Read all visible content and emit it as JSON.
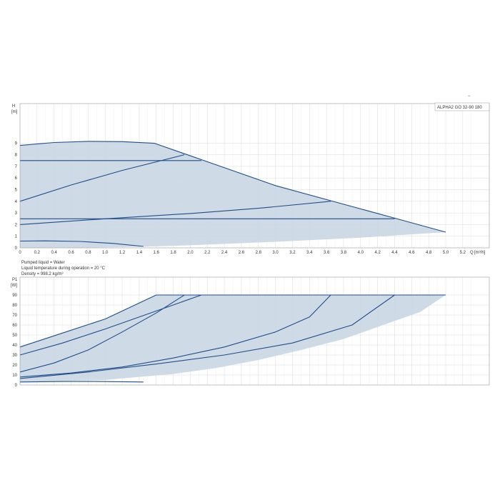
{
  "chart_data": [
    {
      "type": "line",
      "ylabel": "H",
      "yunit": "[m]",
      "xlabel": "Q",
      "xunit": "[m³/h]",
      "xlim": [
        0,
        5.3
      ],
      "ylim": [
        0,
        10
      ],
      "x_ticks": [
        "0",
        "0.2",
        "0.4",
        "0.6",
        "0.8",
        "1.0",
        "1.2",
        "1.4",
        "1.6",
        "1.8",
        "2.0",
        "2.2",
        "2.4",
        "2.6",
        "2.8",
        "3.0",
        "3.2",
        "3.4",
        "3.6",
        "3.8",
        "4.0",
        "4.2",
        "4.4",
        "4.6",
        "4.8",
        "5.0",
        "5.2"
      ],
      "x_tick_values": [
        0,
        0.2,
        0.4,
        0.6,
        0.8,
        1.0,
        1.2,
        1.4,
        1.6,
        1.8,
        2.0,
        2.2,
        2.4,
        2.6,
        2.8,
        3.0,
        3.2,
        3.4,
        3.6,
        3.8,
        4.0,
        4.2,
        4.4,
        4.6,
        4.8,
        5.0,
        5.2
      ],
      "y_ticks": [
        "0",
        "1",
        "2",
        "3",
        "4",
        "5",
        "6",
        "7",
        "8",
        "9"
      ],
      "y_tick_values": [
        0,
        1,
        2,
        3,
        4,
        5,
        6,
        7,
        8,
        9
      ],
      "grid": true,
      "legend": "top-right",
      "legend_text": "ALPHA2 GO 32-90 180",
      "area": {
        "upper": [
          [
            0,
            8.8
          ],
          [
            0.4,
            9.05
          ],
          [
            0.8,
            9.15
          ],
          [
            1.2,
            9.12
          ],
          [
            1.58,
            8.98
          ],
          [
            2.2,
            7.4
          ],
          [
            3.0,
            5.35
          ],
          [
            3.7,
            3.95
          ],
          [
            4.4,
            2.55
          ],
          [
            5.0,
            1.35
          ]
        ],
        "lower": [
          [
            5.0,
            1.35
          ],
          [
            4.0,
            0.88
          ],
          [
            3.0,
            0.52
          ],
          [
            2.0,
            0.22
          ],
          [
            1.45,
            0.1
          ],
          [
            0.8,
            0.02
          ],
          [
            0,
            0
          ]
        ]
      },
      "series": [
        {
          "values": [
            [
              0,
              8.8
            ],
            [
              0.4,
              9.05
            ],
            [
              0.8,
              9.15
            ],
            [
              1.2,
              9.12
            ],
            [
              1.58,
              8.98
            ],
            [
              2.2,
              7.4
            ],
            [
              3.0,
              5.35
            ],
            [
              3.7,
              3.95
            ],
            [
              4.4,
              2.55
            ],
            [
              5.0,
              1.35
            ]
          ]
        },
        {
          "values": [
            [
              0,
              7.5
            ],
            [
              2.13,
              7.5
            ]
          ]
        },
        {
          "values": [
            [
              0,
              4.0
            ],
            [
              0.6,
              5.4
            ],
            [
              1.2,
              6.65
            ],
            [
              1.93,
              8.0
            ]
          ]
        },
        {
          "values": [
            [
              0,
              2.0
            ],
            [
              1.0,
              2.5
            ],
            [
              2.0,
              2.95
            ],
            [
              2.8,
              3.4
            ],
            [
              3.65,
              4.0
            ]
          ]
        },
        {
          "values": [
            [
              0,
              2.5
            ],
            [
              4.4,
              2.5
            ]
          ]
        },
        {
          "values": [
            [
              0,
              0.58
            ],
            [
              0.3,
              0.6
            ],
            [
              0.7,
              0.55
            ],
            [
              1.1,
              0.38
            ],
            [
              1.45,
              0.12
            ]
          ]
        }
      ]
    },
    {
      "type": "line",
      "ylabel": "P1",
      "yunit": "[W]",
      "xlim": [
        0,
        5.3
      ],
      "ylim": [
        0,
        100
      ],
      "x_tick_values": [
        0,
        0.2,
        0.4,
        0.6,
        0.8,
        1.0,
        1.2,
        1.4,
        1.6,
        1.8,
        2.0,
        2.2,
        2.4,
        2.6,
        2.8,
        3.0,
        3.2,
        3.4,
        3.6,
        3.8,
        4.0,
        4.2,
        4.4,
        4.6,
        4.8,
        5.0,
        5.2
      ],
      "y_ticks": [
        "0",
        "10",
        "20",
        "30",
        "40",
        "50",
        "60",
        "70",
        "80",
        "90"
      ],
      "y_tick_values": [
        0,
        10,
        20,
        30,
        40,
        50,
        60,
        70,
        80,
        90
      ],
      "grid": true,
      "area": {
        "upper": [
          [
            0,
            38
          ],
          [
            0.5,
            52
          ],
          [
            1.0,
            66
          ],
          [
            1.6,
            90
          ],
          [
            5.0,
            90
          ]
        ],
        "lower": [
          [
            5.0,
            90
          ],
          [
            4.7,
            73
          ],
          [
            4.2,
            58
          ],
          [
            3.8,
            46
          ],
          [
            3.3,
            35
          ],
          [
            2.8,
            25
          ],
          [
            2.3,
            17
          ],
          [
            1.8,
            11
          ],
          [
            1.45,
            8.5
          ],
          [
            1.0,
            5
          ],
          [
            0.5,
            4
          ],
          [
            0,
            3
          ]
        ]
      },
      "series": [
        {
          "values": [
            [
              0,
              38
            ],
            [
              0.5,
              52
            ],
            [
              1.0,
              66
            ],
            [
              1.6,
              90
            ],
            [
              5.0,
              90
            ]
          ]
        },
        {
          "values": [
            [
              0,
              30
            ],
            [
              0.5,
              42
            ],
            [
              1.0,
              56
            ],
            [
              1.6,
              74
            ],
            [
              2.13,
              90
            ]
          ]
        },
        {
          "values": [
            [
              0,
              13
            ],
            [
              0.4,
              22
            ],
            [
              0.8,
              35
            ],
            [
              1.2,
              53
            ],
            [
              1.6,
              72
            ],
            [
              1.93,
              90
            ]
          ]
        },
        {
          "values": [
            [
              0,
              8
            ],
            [
              0.6,
              12
            ],
            [
              1.2,
              18
            ],
            [
              1.8,
              27
            ],
            [
              2.4,
              38
            ],
            [
              3.0,
              53
            ],
            [
              3.4,
              68
            ],
            [
              3.65,
              90
            ]
          ]
        },
        {
          "values": [
            [
              0,
              6.5
            ],
            [
              0.8,
              13
            ],
            [
              1.6,
              21
            ],
            [
              2.4,
              30
            ],
            [
              3.2,
              42
            ],
            [
              3.9,
              60
            ],
            [
              4.4,
              90
            ]
          ]
        },
        {
          "values": [
            [
              0,
              3
            ],
            [
              0.5,
              3.5
            ],
            [
              0.9,
              3.5
            ],
            [
              1.45,
              3
            ]
          ]
        }
      ]
    }
  ],
  "info": {
    "pumped_liquid": "Pumped liquid = Water",
    "liquid_temperature": "Liquid temperature during operation = 20 °C",
    "density": "Density = 998.2 kg/m³"
  },
  "corner_mark": "−",
  "colors": {
    "line": "#1f4e8c",
    "fill": "#c9d6e2",
    "grid": "#dadada",
    "axis": "#888888"
  }
}
